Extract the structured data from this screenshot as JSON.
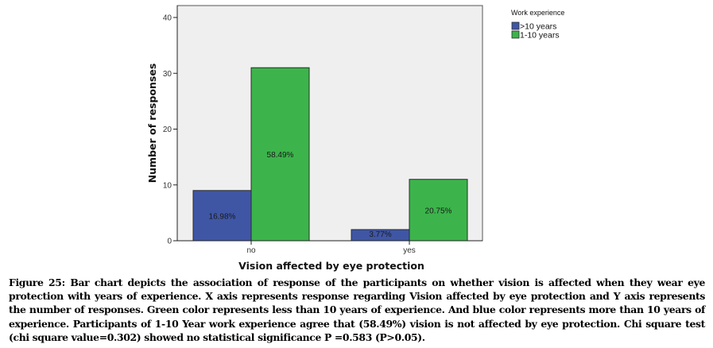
{
  "chart_data": {
    "type": "bar",
    "title": "",
    "xlabel": "Vision affected by eye protection",
    "ylabel": "Number of responses",
    "categories": [
      "no",
      "yes"
    ],
    "series": [
      {
        "name": ">10 years",
        "color": "#3f56a5",
        "values": [
          9,
          2
        ],
        "labels": [
          "16.98%",
          "3.77%"
        ]
      },
      {
        "name": "1-10 years",
        "color": "#3cb44b",
        "values": [
          31,
          11
        ],
        "labels": [
          "58.49%",
          "20.75%"
        ]
      }
    ],
    "ylim": [
      0,
      42
    ],
    "yticks": [
      0,
      10,
      20,
      30,
      40
    ],
    "ytick_labels": [
      "0",
      "10",
      "20",
      "30",
      "40"
    ],
    "grid": false,
    "plot_background": "#efefef",
    "legend": {
      "title": "Work experience",
      "position": "top-right-outside",
      "entries": [
        ">10 years",
        "1-10 years"
      ]
    }
  },
  "caption": "Figure 25: Bar chart depicts the association of response of the participants on whether vision is affected when they wear eye protection with years of experience. X axis represents response regarding Vision affected by eye protection and Y axis represents the number of responses. Green color represents less than 10 years of experience. And blue color represents more than 10 years of experience.  Participants of 1-10 Year work experience agree that (58.49%) vision is not affected by eye protection. Chi square test (chi square value=0.302) showed no statistical significance P =0.583 (P>0.05)."
}
